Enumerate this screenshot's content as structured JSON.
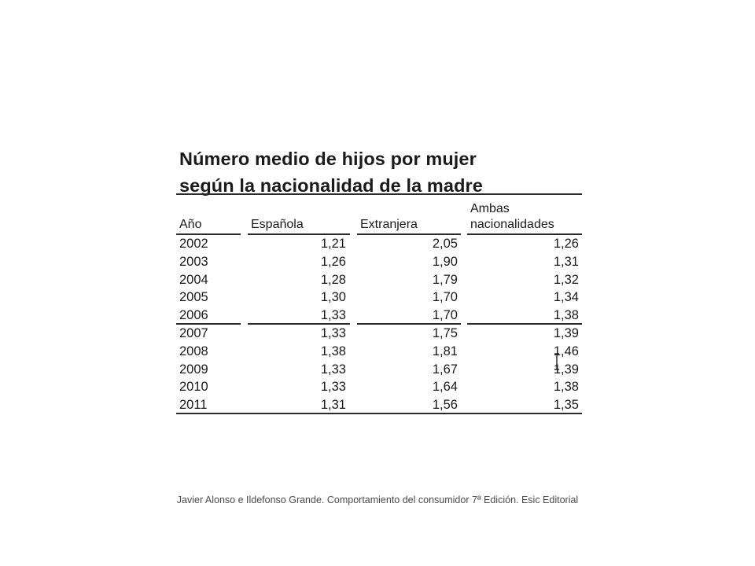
{
  "table": {
    "title_line1": "Número medio de hijos por mujer",
    "title_line2": "según la nacionalidad de la madre",
    "headers": [
      "Año",
      "Española",
      "Extranjera",
      "Ambas nacionalidades"
    ],
    "header_ambas_line1": "Ambas",
    "header_ambas_line2": "nacionalidades",
    "rows": [
      [
        "2002",
        "1,21",
        "2,05",
        "1,26"
      ],
      [
        "2003",
        "1,26",
        "1,90",
        "1,31"
      ],
      [
        "2004",
        "1,28",
        "1,79",
        "1,32"
      ],
      [
        "2005",
        "1,30",
        "1,70",
        "1,34"
      ],
      [
        "2006",
        "1,33",
        "1,70",
        "1,38"
      ],
      [
        "2007",
        "1,33",
        "1,75",
        "1,39"
      ],
      [
        "2008",
        "1,38",
        "1,81",
        "1,46"
      ],
      [
        "2009",
        "1,33",
        "1,67",
        "1,39"
      ],
      [
        "2010",
        "1,33",
        "1,64",
        "1,38"
      ],
      [
        "2011",
        "1,31",
        "1,56",
        "1,35"
      ]
    ]
  },
  "footer": {
    "citation": "Javier Alonso e Ildefonso Grande. Comportamiento del consumidor 7ª Edición. Esic Editorial"
  },
  "cursor": {
    "icon": "text-cursor-icon"
  }
}
